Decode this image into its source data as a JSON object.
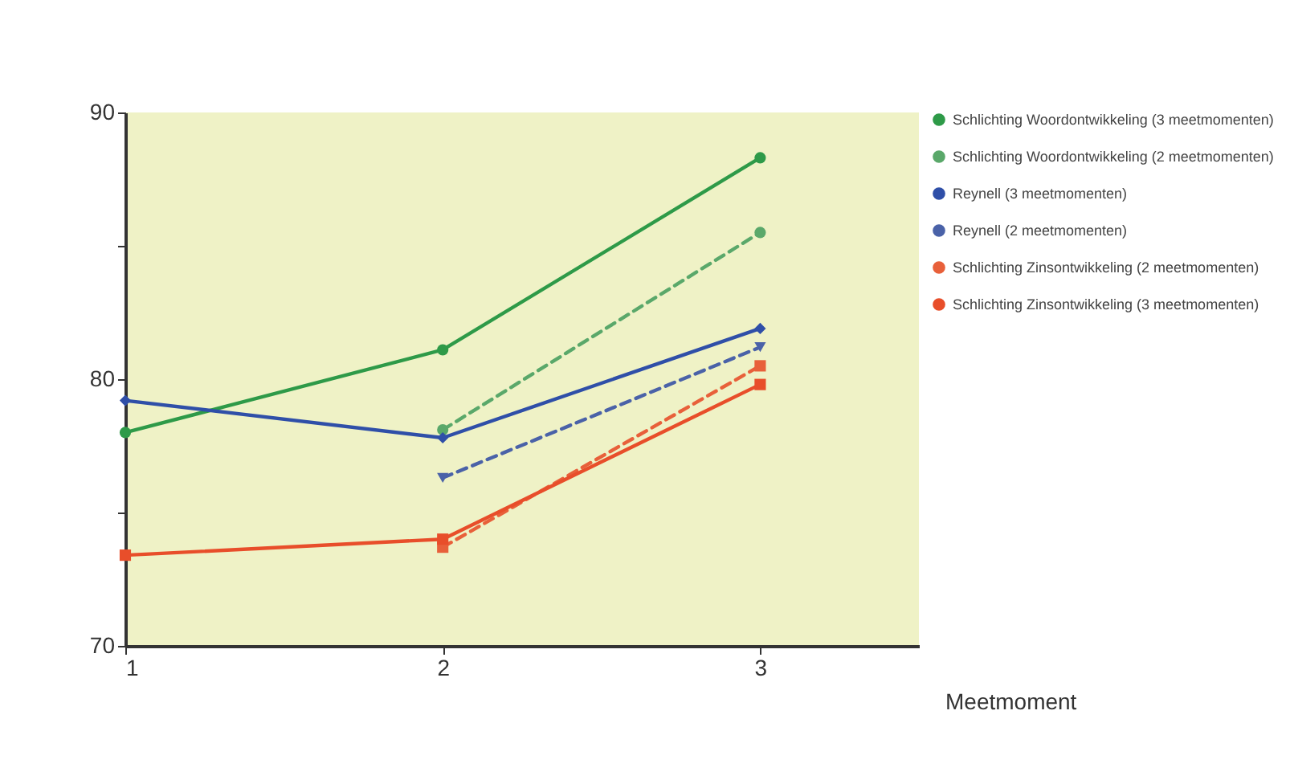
{
  "chart_data": {
    "type": "line",
    "xlabel": "Meetmoment",
    "x": [
      1,
      2,
      3
    ],
    "xlim": [
      1,
      3.5
    ],
    "xticks": [
      1,
      2,
      3
    ],
    "ylim": [
      70,
      90
    ],
    "yticks": [
      70,
      {
        "value": 75,
        "label": null
      },
      80,
      {
        "value": 85,
        "label": null
      },
      90
    ],
    "grid": false,
    "legend": "right",
    "marker": "circle",
    "series": [
      {
        "name": "Schlichting Woordontwikkeling (3 meetmomenten)",
        "color": "#2e9a48",
        "values": [
          78.0,
          81.1,
          88.3
        ],
        "line_style": "solid"
      },
      {
        "name": "Schlichting Woordontwikkeling (2 meetmomenten)",
        "color": "#5aa86a",
        "values": [
          null,
          78.1,
          85.5
        ],
        "line_style": "dashed"
      },
      {
        "name": "Reynell (3 meetmomenten)",
        "color": "#2f4fa8",
        "values": [
          79.2,
          77.8,
          81.9
        ],
        "line_style": "solid",
        "marker": "diamond"
      },
      {
        "name": "Reynell (2 meetmomenten)",
        "color": "#4a62a8",
        "values": [
          null,
          76.3,
          81.2
        ],
        "line_style": "dashed",
        "marker": "triangle"
      },
      {
        "name": "Schlichting Zinsontwikkeling (2 meetmomenten)",
        "color": "#e8603a",
        "values": [
          null,
          73.7,
          80.5
        ],
        "line_style": "dashed",
        "marker": "square"
      },
      {
        "name": "Schlichting Zinsontwikkeling (3 meetmomenten)",
        "color": "#e84e2a",
        "values": [
          73.4,
          74.0,
          79.8
        ],
        "line_style": "solid",
        "marker": "square"
      }
    ]
  }
}
